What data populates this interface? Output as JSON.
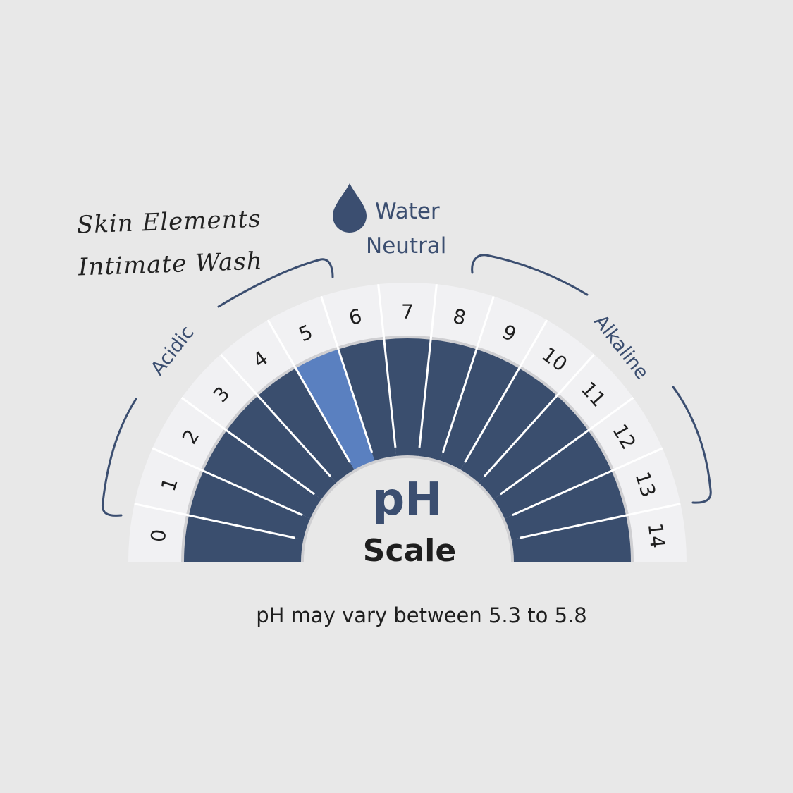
{
  "brand": {
    "line1": "Skin Elements",
    "line2": "Intimate Wash"
  },
  "water": {
    "icon": "water-drop-icon",
    "line1": "Water",
    "line2": "Neutral"
  },
  "ranges": {
    "acidic": "Acidic",
    "alkaline": "Alkaline"
  },
  "scale": {
    "title": "pH",
    "subtitle": "Scale",
    "labels": [
      "0",
      "1",
      "2",
      "3",
      "4",
      "5",
      "6",
      "7",
      "8",
      "9",
      "10",
      "11",
      "12",
      "13",
      "14"
    ],
    "highlighted_value": "5"
  },
  "note": "pH may vary between 5.3 to 5.8",
  "colors": {
    "background": "#e8e8e8",
    "outer_band": "#f1f1f3",
    "segment": "#3a4e6e",
    "highlight": "#5a80c0",
    "text_navy": "#3b4e70",
    "text_dark": "#1e1e1e"
  }
}
